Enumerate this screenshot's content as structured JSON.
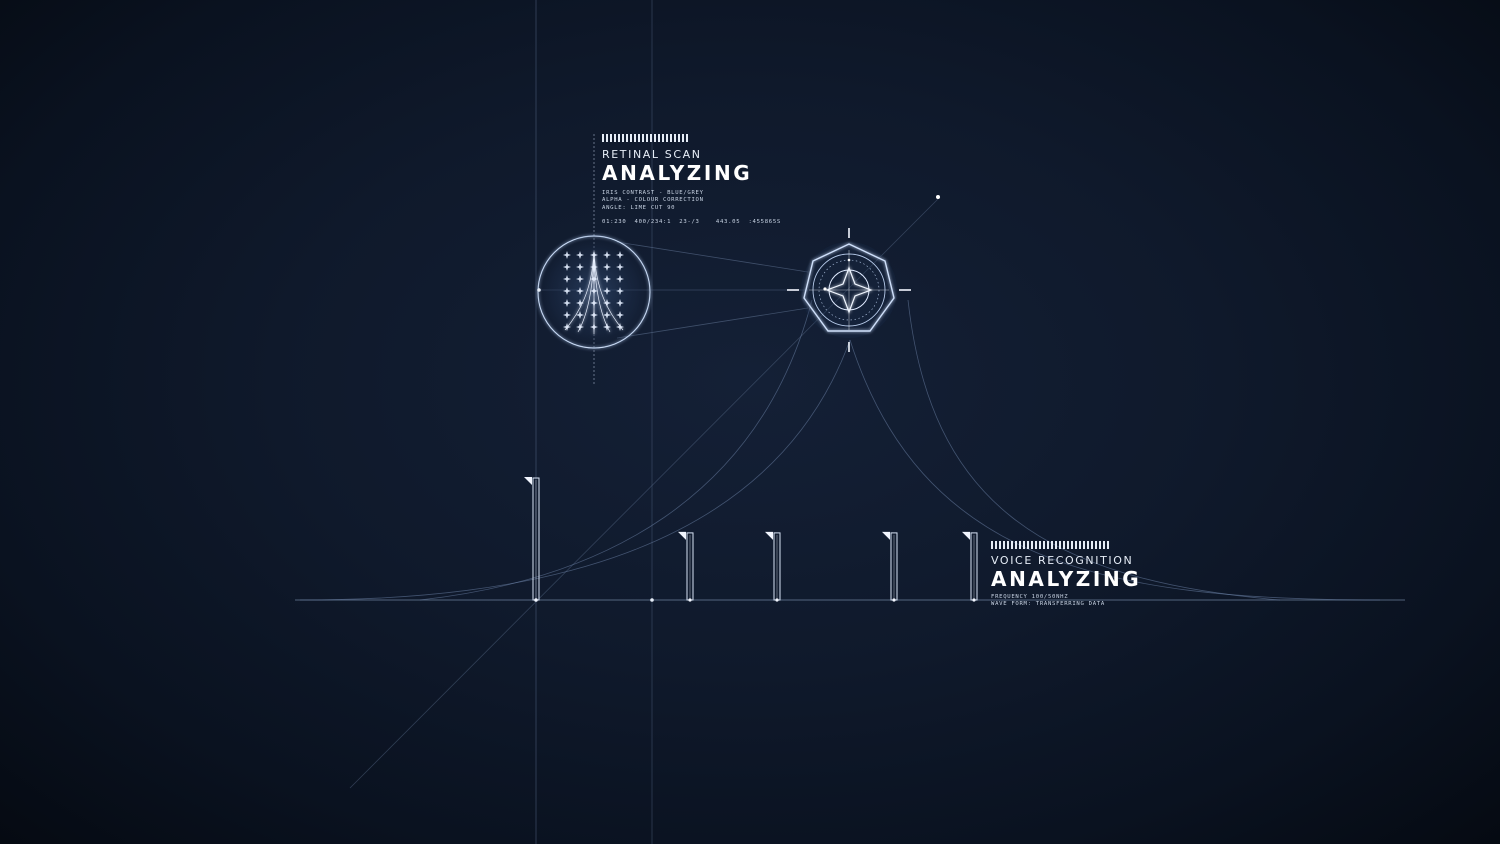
{
  "retinal_scan": {
    "title": "RETINAL SCAN",
    "status": "ANALYZING",
    "details": [
      "IRIS CONTRAST - BLUE/GREY",
      "ALPHA - COLOUR CORRECTION",
      "ANGLE: LIME CUT 90"
    ],
    "readout": "01:230  400/234:1  23-/3    443.05  :455865S"
  },
  "voice_recognition": {
    "title": "VOICE RECOGNITION",
    "status": "ANALYZING",
    "details": [
      "FREQUENCY 100/50NHZ",
      "WAVE FORM: TRANSFERRING DATA"
    ]
  },
  "voice_level_markers": [
    {
      "level": 1.0
    },
    {
      "level": 0.55
    },
    {
      "level": 0.55
    },
    {
      "level": 0.55
    },
    {
      "level": 0.55
    }
  ],
  "colors": {
    "background": "#0f192b",
    "line": "#7f93b3",
    "text": "#e6edf7",
    "glow": "#b9d3ff"
  },
  "icons": [
    "iris-scan-icon",
    "octagon-target-icon",
    "crosshair-icon"
  ]
}
